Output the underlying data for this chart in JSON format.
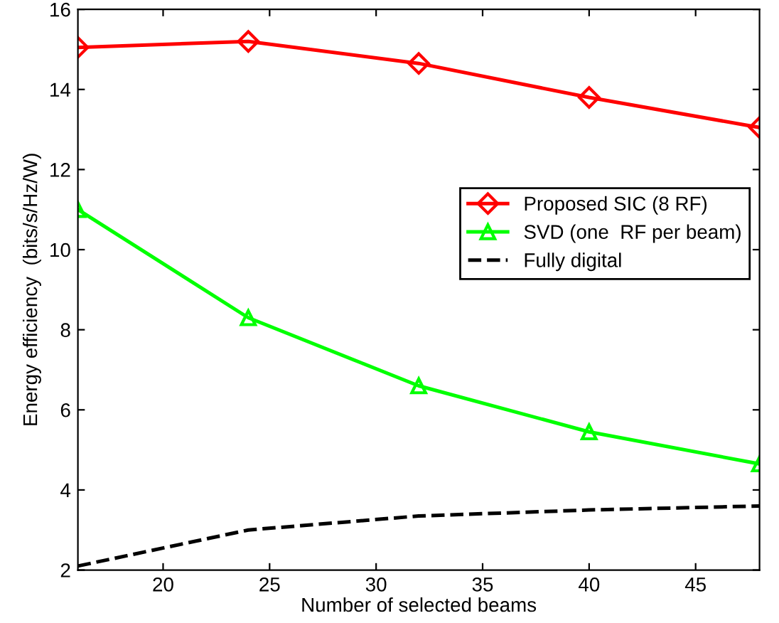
{
  "chart_data": {
    "type": "line",
    "xlabel": "Number of selected beams",
    "ylabel": "Energy efficiency  (bits/s/Hz/W)",
    "x": [
      16,
      24,
      32,
      40,
      48
    ],
    "series": [
      {
        "name": "Proposed SIC (8 RF)",
        "color": "#ff0000",
        "values": [
          15.05,
          15.2,
          14.65,
          13.8,
          13.05
        ],
        "marker": "diamond",
        "line_style": "solid"
      },
      {
        "name": "SVD (one  RF per beam)",
        "color": "#00ff00",
        "values": [
          11.0,
          8.3,
          6.6,
          5.45,
          4.65
        ],
        "marker": "triangle",
        "line_style": "solid"
      },
      {
        "name": "Fully digital",
        "color": "#000000",
        "values": [
          2.1,
          3.0,
          3.35,
          3.5,
          3.6
        ],
        "marker": "none",
        "line_style": "dashed"
      }
    ],
    "xlim": [
      16,
      48
    ],
    "xticks": [
      20,
      25,
      30,
      35,
      40,
      45
    ],
    "ylim": [
      2,
      16
    ],
    "yticks": [
      2,
      4,
      6,
      8,
      10,
      12,
      14,
      16
    ],
    "grid": false,
    "legend": "right"
  }
}
